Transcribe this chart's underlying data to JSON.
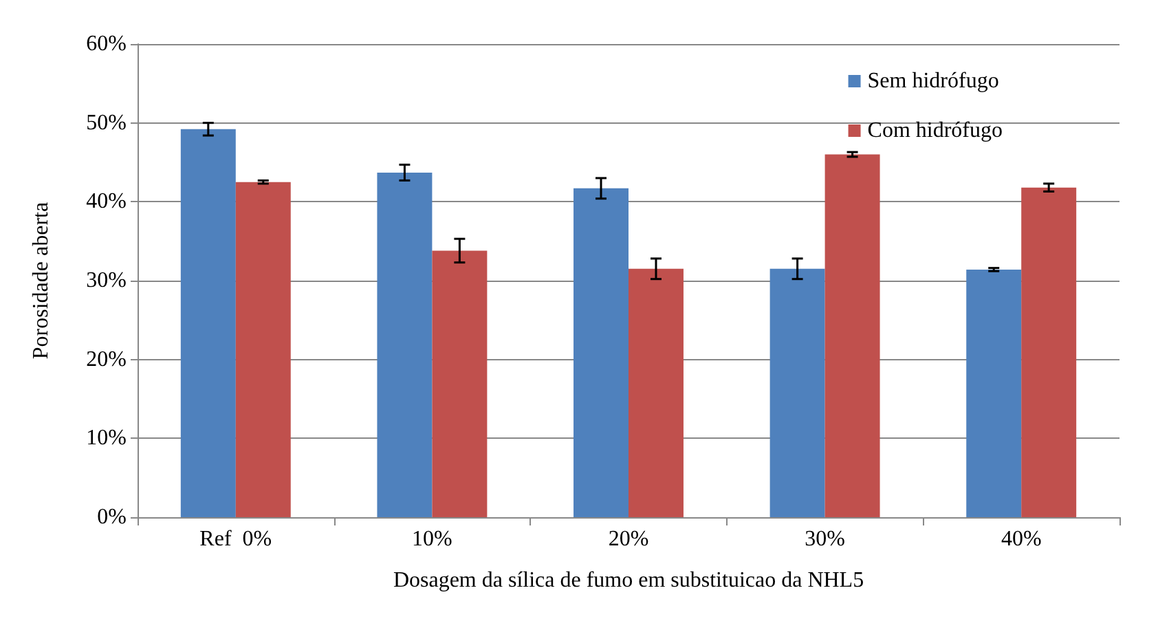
{
  "chart_data": {
    "type": "bar",
    "xlabel": "Dosagem da sílica de fumo em substituicao da NHL5",
    "ylabel": "Porosidade aberta",
    "categories": [
      "Ref  0%",
      "10%",
      "20%",
      "30%",
      "40%"
    ],
    "series": [
      {
        "name": "Sem hidrófugo",
        "color": "#4f81bd",
        "values": [
          49.2,
          43.7,
          41.7,
          31.5,
          31.4
        ],
        "errors": [
          0.8,
          1.0,
          1.3,
          1.3,
          0.2
        ]
      },
      {
        "name": "Com hidrófugo",
        "color": "#c0504d",
        "values": [
          42.5,
          33.8,
          31.5,
          46.0,
          41.8
        ],
        "errors": [
          0.2,
          1.5,
          1.3,
          0.3,
          0.5
        ]
      }
    ],
    "ylim": [
      0,
      60
    ],
    "yticks": [
      {
        "value": 0,
        "label": "0%"
      },
      {
        "value": 10,
        "label": "10%"
      },
      {
        "value": 20,
        "label": "20%"
      },
      {
        "value": 30,
        "label": "30%"
      },
      {
        "value": 40,
        "label": "40%"
      },
      {
        "value": 50,
        "label": "50%"
      },
      {
        "value": 60,
        "label": "60%"
      }
    ],
    "grid": "y",
    "legend": "top right"
  }
}
